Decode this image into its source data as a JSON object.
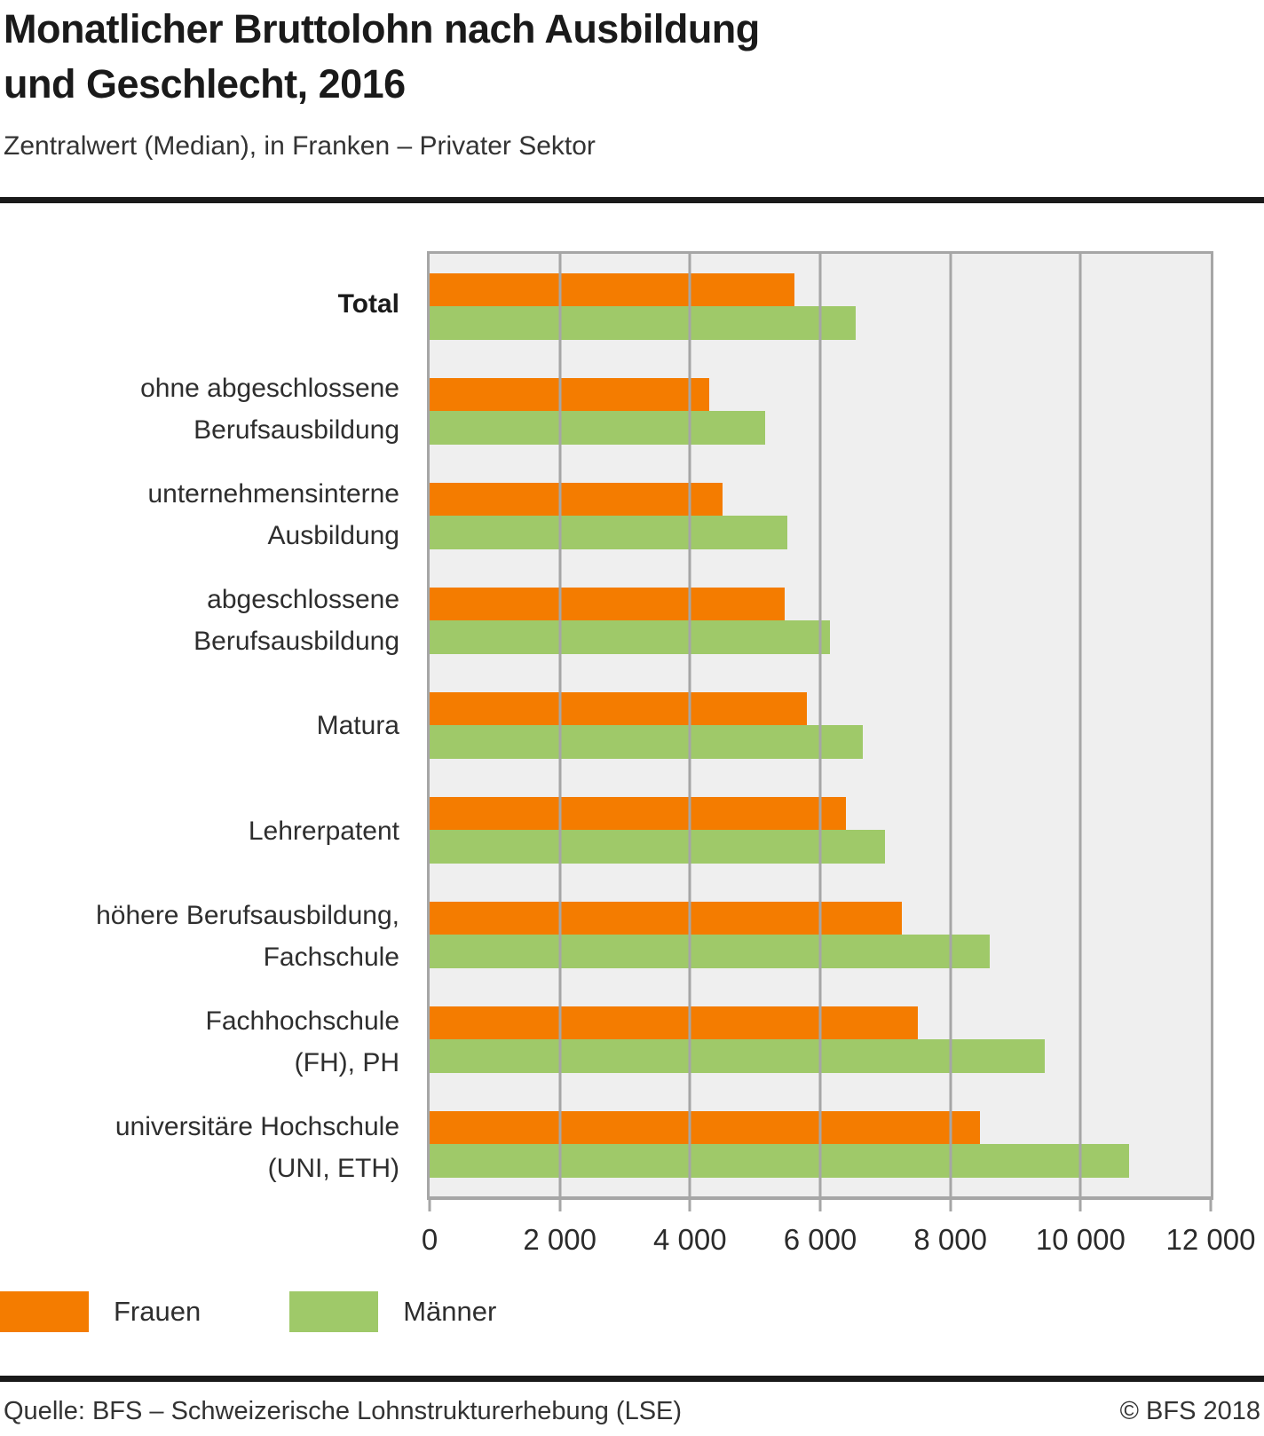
{
  "header": {
    "title": "Monatlicher Bruttolohn nach Ausbildung\nund Geschlecht, 2016",
    "subtitle": "Zentralwert (Median), in Franken – Privater Sektor"
  },
  "chart_data": {
    "type": "bar",
    "orientation": "horizontal",
    "title": "Monatlicher Bruttolohn nach Ausbildung und Geschlecht, 2016",
    "subtitle": "Zentralwert (Median), in Franken – Privater Sektor",
    "unit": "Franken",
    "categories": [
      "Total",
      "ohne abgeschlossene Berufsausbildung",
      "unternehmensinterne Ausbildung",
      "abgeschlossene Berufsausbildung",
      "Matura",
      "Lehrerpatent",
      "höhere Berufsausbildung, Fachschule",
      "Fachhochschule (FH), PH",
      "universitäre Hochschule (UNI, ETH)"
    ],
    "category_display": [
      "Total",
      "ohne abgeschlossene\nBerufsausbildung",
      "unternehmensinterne\nAusbildung",
      "abgeschlossene\nBerufsausbildung",
      "Matura",
      "Lehrerpatent",
      "höhere Berufsausbildung,\nFachschule",
      "Fachhochschule\n(FH), PH",
      "universitäre Hochschule\n(UNI, ETH)"
    ],
    "bold_category": "Total",
    "series": [
      {
        "name": "Frauen",
        "color": "#F47C00",
        "values": [
          5600,
          4300,
          4500,
          5450,
          5800,
          6400,
          7250,
          7500,
          8450
        ]
      },
      {
        "name": "Männer",
        "color": "#9FC969",
        "values": [
          6550,
          5150,
          5500,
          6150,
          6650,
          7000,
          8600,
          9450,
          10750
        ]
      }
    ],
    "xlim": [
      0,
      12000
    ],
    "xticks": [
      0,
      2000,
      4000,
      6000,
      8000,
      10000,
      12000
    ],
    "xtick_labels": [
      "0",
      "2 000",
      "4 000",
      "6 000",
      "8 000",
      "10 000",
      "12 000"
    ],
    "grid": true,
    "legend_position": "bottom",
    "plot_bg": "#EFEFEF",
    "grid_color": "#A6A6A6"
  },
  "legend": {
    "items": [
      {
        "label": "Frauen",
        "color": "#F47C00"
      },
      {
        "label": "Männer",
        "color": "#9FC969"
      }
    ]
  },
  "footer": {
    "source": "Quelle: BFS – Schweizerische Lohnstrukturerhebung (LSE)",
    "copyright": "© BFS 2018"
  }
}
